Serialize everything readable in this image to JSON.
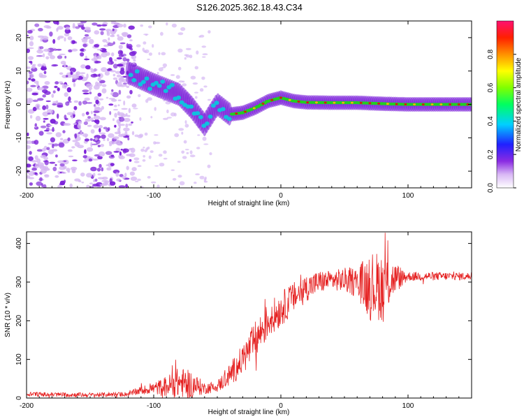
{
  "title": "S126.2025.362.18.43.C34",
  "colors": {
    "series_line": "#e52020",
    "ridge_hot": "#e01010",
    "ridge_mid": "#20d020",
    "ridge_low": "#10c0e0",
    "noise": "#7a1fd8",
    "noise_faint": "#d6b8f3"
  },
  "chart_data": [
    {
      "type": "heatmap",
      "name": "spectrogram",
      "xlabel": "Height of straight line (km)",
      "ylabel": "Frequency (Hz)",
      "xlim": [
        -200,
        150
      ],
      "ylim": [
        -25,
        25
      ],
      "xticks": [
        -200,
        -100,
        0,
        100
      ],
      "yticks": [
        -20,
        -10,
        0,
        10,
        20
      ],
      "colorbar": {
        "label": "Normalized spectral amplitude",
        "range": [
          0,
          1
        ],
        "ticks": [
          "0.0",
          "0.2",
          "0.4",
          "0.6",
          "0.8"
        ],
        "tick_values": [
          0.0,
          0.2,
          0.4,
          0.6,
          0.8
        ]
      },
      "ridge": [
        {
          "x": -120,
          "y": 9.5
        },
        {
          "x": -100,
          "y": 6
        },
        {
          "x": -80,
          "y": 3
        },
        {
          "x": -70,
          "y": -1
        },
        {
          "x": -60,
          "y": -6
        },
        {
          "x": -50,
          "y": 0
        },
        {
          "x": -40,
          "y": -3
        },
        {
          "x": -30,
          "y": -2.5
        },
        {
          "x": -20,
          "y": -1
        },
        {
          "x": -10,
          "y": 1
        },
        {
          "x": 0,
          "y": 2
        },
        {
          "x": 10,
          "y": 1
        },
        {
          "x": 20,
          "y": 0.6
        },
        {
          "x": 40,
          "y": 0.5
        },
        {
          "x": 60,
          "y": 0.5
        },
        {
          "x": 80,
          "y": 0.2
        },
        {
          "x": 100,
          "y": 0
        },
        {
          "x": 150,
          "y": 0
        }
      ]
    },
    {
      "type": "line",
      "name": "snr",
      "xlabel": "Height of straight line (km)",
      "ylabel": "SNR (10 * v/v)",
      "xlim": [
        -200,
        150
      ],
      "ylim": [
        0,
        430
      ],
      "xticks": [
        -200,
        -100,
        0,
        100
      ],
      "yticks": [
        0,
        100,
        200,
        300,
        400
      ],
      "trend": [
        {
          "x": -200,
          "y": 10
        },
        {
          "x": -150,
          "y": 8
        },
        {
          "x": -120,
          "y": 10
        },
        {
          "x": -110,
          "y": 20
        },
        {
          "x": -100,
          "y": 25
        },
        {
          "x": -90,
          "y": 30
        },
        {
          "x": -80,
          "y": 40
        },
        {
          "x": -70,
          "y": 35
        },
        {
          "x": -60,
          "y": 25
        },
        {
          "x": -50,
          "y": 30
        },
        {
          "x": -40,
          "y": 60
        },
        {
          "x": -30,
          "y": 100
        },
        {
          "x": -20,
          "y": 150
        },
        {
          "x": -10,
          "y": 200
        },
        {
          "x": 0,
          "y": 230
        },
        {
          "x": 10,
          "y": 260
        },
        {
          "x": 20,
          "y": 285
        },
        {
          "x": 30,
          "y": 300
        },
        {
          "x": 40,
          "y": 305
        },
        {
          "x": 50,
          "y": 305
        },
        {
          "x": 60,
          "y": 300
        },
        {
          "x": 70,
          "y": 290
        },
        {
          "x": 80,
          "y": 290
        },
        {
          "x": 90,
          "y": 310
        },
        {
          "x": 100,
          "y": 315
        },
        {
          "x": 150,
          "y": 315
        }
      ],
      "amplitude": [
        {
          "x": -200,
          "y": 6
        },
        {
          "x": -120,
          "y": 6
        },
        {
          "x": -100,
          "y": 15
        },
        {
          "x": -80,
          "y": 40
        },
        {
          "x": -70,
          "y": 35
        },
        {
          "x": -60,
          "y": 15
        },
        {
          "x": -50,
          "y": 15
        },
        {
          "x": -40,
          "y": 30
        },
        {
          "x": -20,
          "y": 50
        },
        {
          "x": 0,
          "y": 45
        },
        {
          "x": 20,
          "y": 35
        },
        {
          "x": 40,
          "y": 25
        },
        {
          "x": 60,
          "y": 40
        },
        {
          "x": 70,
          "y": 90
        },
        {
          "x": 80,
          "y": 90
        },
        {
          "x": 90,
          "y": 40
        },
        {
          "x": 100,
          "y": 12
        },
        {
          "x": 150,
          "y": 10
        }
      ]
    }
  ]
}
